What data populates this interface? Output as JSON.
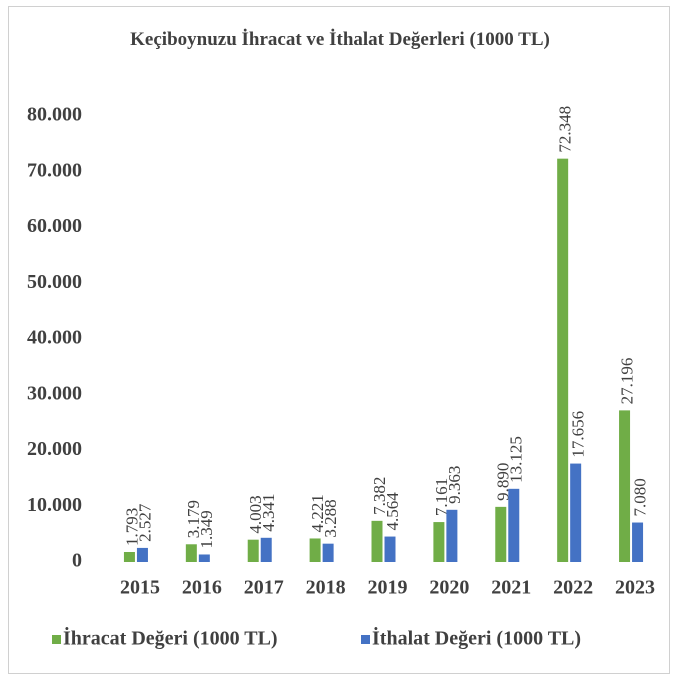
{
  "chart_data": {
    "type": "bar",
    "title": "Keçiboynuzu İhracat ve İthalat Değerleri (1000 TL)",
    "categories": [
      "2015",
      "2016",
      "2017",
      "2018",
      "2019",
      "2020",
      "2021",
      "2022",
      "2023"
    ],
    "series": [
      {
        "name": "İhracat Değeri (1000 TL)",
        "color": "#70ad47",
        "values": [
          1793,
          3179,
          4003,
          4221,
          7382,
          7161,
          9890,
          72348,
          27196
        ],
        "value_labels": [
          "1.793",
          "3.179",
          "4.003",
          "4.221",
          "7.382",
          "7.161",
          "9.890",
          "72.348",
          "27.196"
        ]
      },
      {
        "name": "İthalat Değeri (1000 TL)",
        "color": "#4472c4",
        "values": [
          2527,
          1349,
          4341,
          3288,
          4564,
          9363,
          13125,
          17656,
          7080
        ],
        "value_labels": [
          "2.527",
          "1.349",
          "4.341",
          "3.288",
          "4.564",
          "9.363",
          "13.125",
          "17.656",
          "7.080"
        ]
      }
    ],
    "ylim": [
      0,
      80000
    ],
    "yticks": [
      0,
      {
        "value": 10000,
        "label": "10.000"
      },
      {
        "value": 20000,
        "label": "20.000"
      },
      {
        "value": 30000,
        "label": "30.000"
      },
      {
        "value": 40000,
        "label": "40.000"
      },
      {
        "value": 50000,
        "label": "50.000"
      },
      {
        "value": 60000,
        "label": "60.000"
      },
      {
        "value": 70000,
        "label": "70.000"
      },
      {
        "value": 80000,
        "label": "80.000"
      }
    ],
    "grid": false,
    "legend": "bottom"
  }
}
